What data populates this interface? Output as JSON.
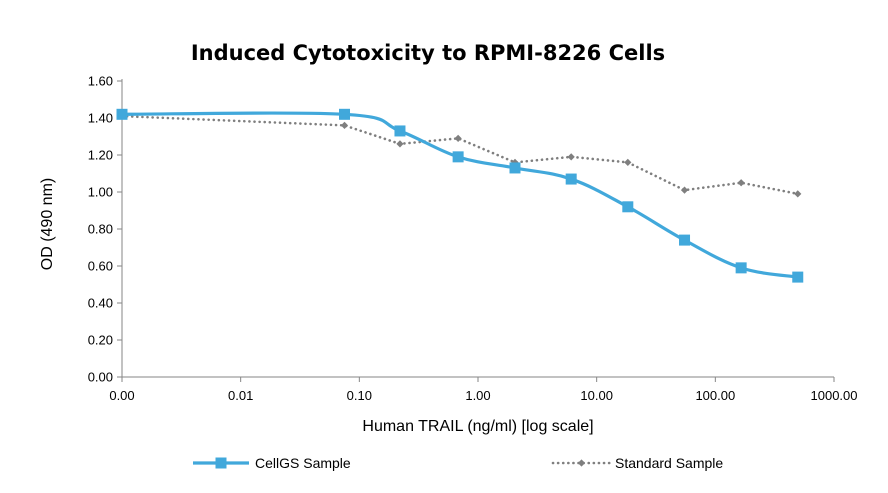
{
  "chart_data": {
    "type": "line",
    "title": "Induced Cytotoxicity to RPMI-8226 Cells",
    "xlabel": "Human TRAIL (ng/ml) [log scale]",
    "ylabel": "OD (490 nm)",
    "x_scale": "log",
    "x_tick_labels": [
      "0.00",
      "0.01",
      "0.10",
      "1.00",
      "10.00",
      "100.00",
      "1000.00"
    ],
    "y_tick_labels": [
      "0.00",
      "0.20",
      "0.40",
      "0.60",
      "0.80",
      "1.00",
      "1.20",
      "1.40",
      "1.60"
    ],
    "xlim": [
      0.001,
      1000
    ],
    "ylim": [
      0,
      1.6
    ],
    "grid": false,
    "legend_position": "bottom",
    "series": [
      {
        "name": "CellGS Sample",
        "color": "#41A8DB",
        "marker": "square",
        "style": "solid-smooth",
        "x": [
          0.001,
          0.075,
          0.22,
          0.68,
          2.05,
          6.1,
          18.3,
          55,
          165,
          495
        ],
        "y": [
          1.42,
          1.42,
          1.33,
          1.19,
          1.13,
          1.07,
          0.92,
          0.74,
          0.59,
          0.54
        ]
      },
      {
        "name": "Standard Sample",
        "color": "#7F7F7F",
        "marker": "diamond",
        "style": "dotted",
        "x": [
          0.001,
          0.075,
          0.22,
          0.68,
          2.05,
          6.1,
          18.3,
          55,
          165,
          495
        ],
        "y": [
          1.41,
          1.36,
          1.26,
          1.29,
          1.16,
          1.19,
          1.16,
          1.01,
          1.05,
          0.99
        ]
      }
    ]
  }
}
